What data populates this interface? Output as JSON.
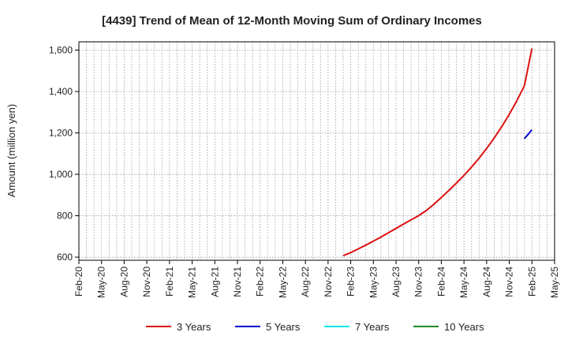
{
  "chart_data": {
    "type": "line",
    "title": "[4439]  Trend of Mean of 12-Month Moving Sum of Ordinary Incomes",
    "xlabel": "",
    "ylabel": "Amount (million yen)",
    "x_ticks": [
      "Feb-20",
      "May-20",
      "Aug-20",
      "Nov-20",
      "Feb-21",
      "May-21",
      "Aug-21",
      "Nov-21",
      "Feb-22",
      "May-22",
      "Aug-22",
      "Nov-22",
      "Feb-23",
      "May-23",
      "Aug-23",
      "Nov-23",
      "Feb-24",
      "May-24",
      "Aug-24",
      "Nov-24",
      "Feb-25",
      "May-25"
    ],
    "y_ticks": [
      600,
      800,
      1000,
      1200,
      1400,
      1600
    ],
    "y_tick_labels": [
      "600",
      "800",
      "1,000",
      "1,200",
      "1,400",
      "1,600"
    ],
    "ylim": [
      585,
      1640
    ],
    "grid": true,
    "legend_position": "bottom",
    "series": [
      {
        "name": "3 Years",
        "color": "#dd1111",
        "x": [
          "Jan-23",
          "Feb-23",
          "Mar-23",
          "Apr-23",
          "May-23",
          "Jun-23",
          "Jul-23",
          "Aug-23",
          "Sep-23",
          "Oct-23",
          "Nov-23",
          "Dec-23",
          "Jan-24",
          "Feb-24",
          "Mar-24",
          "Apr-24",
          "May-24",
          "Jun-24",
          "Jul-24",
          "Aug-24",
          "Sep-24",
          "Oct-24",
          "Nov-24",
          "Dec-24",
          "Jan-25",
          "Feb-25"
        ],
        "values": [
          607,
          622,
          640,
          658,
          677,
          697,
          718,
          739,
          760,
          780,
          800,
          825,
          855,
          888,
          922,
          958,
          995,
          1035,
          1078,
          1125,
          1175,
          1230,
          1290,
          1355,
          1428,
          1608
        ]
      },
      {
        "name": "5 Years",
        "color": "#0000cc",
        "x": [
          "Jan-25",
          "Feb-25"
        ],
        "values": [
          1172,
          1215
        ]
      },
      {
        "name": "7 Years",
        "color": "#00e5ee",
        "x": [],
        "values": []
      },
      {
        "name": "10 Years",
        "color": "#228822",
        "x": [],
        "values": []
      }
    ]
  }
}
